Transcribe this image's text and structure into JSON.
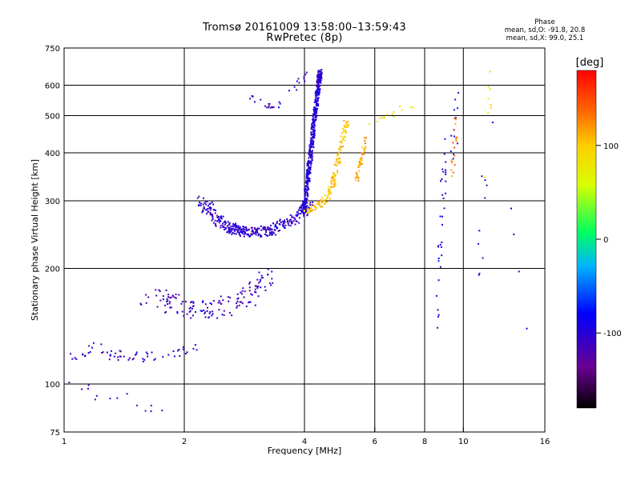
{
  "header": {
    "title_line1": "Tromsø 20161009 13:58:00–13:59:43",
    "title_line2": "RwPretec (8p)"
  },
  "phase_panel": {
    "title": "Phase",
    "o_mode": "mean, sd,O: -91.8, 20.8",
    "x_mode": "mean, sd,X:  99.0, 25.1"
  },
  "colorbar": {
    "label": "[deg]",
    "ticks": [
      {
        "value": 100,
        "label": "100"
      },
      {
        "value": 0,
        "label": "0"
      },
      {
        "value": -100,
        "label": "-100"
      }
    ],
    "range": [
      -180,
      180
    ]
  },
  "chart_data": {
    "type": "scatter",
    "xlabel": "Frequency [MHz]",
    "ylabel": "Stationary phase Virtual Height [km]",
    "xscale": "log",
    "yscale": "log",
    "xlim": [
      1,
      16
    ],
    "ylim": [
      75,
      750
    ],
    "xticks": [
      {
        "value": 1,
        "label": "1"
      },
      {
        "value": 2,
        "label": "2"
      },
      {
        "value": 4,
        "label": "4"
      },
      {
        "value": 6,
        "label": "6"
      },
      {
        "value": 8,
        "label": "8"
      },
      {
        "value": 10,
        "label": "10"
      },
      {
        "value": 16,
        "label": "16"
      }
    ],
    "yticks": [
      {
        "value": 75,
        "label": "75"
      },
      {
        "value": 100,
        "label": "100"
      },
      {
        "value": 200,
        "label": "200"
      },
      {
        "value": 300,
        "label": "300"
      },
      {
        "value": 400,
        "label": "400"
      },
      {
        "value": 500,
        "label": "500"
      },
      {
        "value": 600,
        "label": "600"
      },
      {
        "value": 750,
        "label": "750"
      }
    ],
    "grid": true,
    "point_groups": [
      {
        "mode": "O",
        "phase": -110,
        "trace": [
          [
            1.02,
            117
          ],
          [
            1.1,
            120
          ],
          [
            1.2,
            125
          ],
          [
            1.35,
            119
          ],
          [
            1.5,
            118
          ],
          [
            1.6,
            117
          ],
          [
            1.8,
            119
          ],
          [
            2.0,
            122
          ],
          [
            2.2,
            124
          ]
        ],
        "count": 60,
        "spread": [
          0.035,
          0.03
        ]
      },
      {
        "mode": "O",
        "phase": -120,
        "trace": [
          [
            1.05,
            100
          ],
          [
            1.2,
            95
          ],
          [
            1.35,
            92
          ],
          [
            1.5,
            90
          ],
          [
            1.7,
            85
          ],
          [
            1.9,
            85
          ]
        ],
        "count": 14,
        "spread": [
          0.04,
          0.04
        ]
      },
      {
        "mode": "O",
        "phase": -110,
        "trace": [
          [
            1.6,
            170
          ],
          [
            1.8,
            165
          ],
          [
            2.0,
            158
          ],
          [
            2.2,
            155
          ],
          [
            2.5,
            158
          ],
          [
            2.8,
            165
          ],
          [
            3.0,
            175
          ],
          [
            3.2,
            190
          ]
        ],
        "count": 150,
        "spread": [
          0.05,
          0.06
        ]
      },
      {
        "mode": "O",
        "phase": -105,
        "trace": [
          [
            2.2,
            300
          ],
          [
            2.4,
            270
          ],
          [
            2.6,
            255
          ],
          [
            2.8,
            250
          ],
          [
            3.0,
            248
          ],
          [
            3.3,
            252
          ],
          [
            3.6,
            262
          ],
          [
            3.9,
            278
          ],
          [
            4.1,
            292
          ]
        ],
        "count": 360,
        "spread": [
          0.035,
          0.03
        ]
      },
      {
        "mode": "O",
        "phase": -100,
        "trace": [
          [
            4.0,
            280
          ],
          [
            4.05,
            320
          ],
          [
            4.1,
            360
          ],
          [
            4.15,
            400
          ],
          [
            4.2,
            450
          ],
          [
            4.25,
            500
          ],
          [
            4.3,
            560
          ],
          [
            4.35,
            620
          ],
          [
            4.4,
            650
          ]
        ],
        "count": 480,
        "spread": [
          0.012,
          0.02
        ]
      },
      {
        "mode": "O",
        "phase": -105,
        "trace": [
          [
            2.9,
            560
          ],
          [
            3.1,
            540
          ],
          [
            3.3,
            530
          ],
          [
            3.5,
            535
          ],
          [
            3.8,
            600
          ],
          [
            4.0,
            640
          ]
        ],
        "count": 30,
        "spread": [
          0.02,
          0.02
        ]
      },
      {
        "mode": "X",
        "phase": 100,
        "trace": [
          [
            4.0,
            280
          ],
          [
            4.3,
            292
          ],
          [
            4.55,
            305
          ],
          [
            4.7,
            330
          ],
          [
            4.8,
            360
          ],
          [
            4.9,
            400
          ],
          [
            5.0,
            440
          ],
          [
            5.1,
            480
          ]
        ],
        "count": 150,
        "spread": [
          0.015,
          0.02
        ]
      },
      {
        "mode": "X",
        "phase": 115,
        "trace": [
          [
            5.4,
            340
          ],
          [
            5.5,
            370
          ],
          [
            5.6,
            400
          ],
          [
            5.7,
            430
          ]
        ],
        "count": 40,
        "spread": [
          0.01,
          0.02
        ]
      },
      {
        "mode": "X",
        "phase": 85,
        "trace": [
          [
            5.6,
            460
          ],
          [
            6.0,
            480
          ],
          [
            6.5,
            500
          ],
          [
            7.0,
            520
          ],
          [
            7.5,
            540
          ]
        ],
        "count": 14,
        "spread": [
          0.02,
          0.02
        ]
      },
      {
        "mode": "O",
        "phase": -90,
        "trace": [
          [
            8.6,
            150
          ],
          [
            8.75,
            220
          ],
          [
            8.85,
            300
          ],
          [
            8.95,
            380
          ],
          [
            9.5,
            450
          ],
          [
            9.6,
            550
          ]
        ],
        "count": 45,
        "spread": [
          0.015,
          0.12
        ]
      },
      {
        "mode": "X",
        "phase": 130,
        "trace": [
          [
            9.3,
            350
          ],
          [
            9.5,
            400
          ],
          [
            9.6,
            470
          ]
        ],
        "count": 20,
        "spread": [
          0.01,
          0.1
        ]
      },
      {
        "mode": "O",
        "phase": -100,
        "trace": [
          [
            11.0,
            200
          ],
          [
            11.3,
            350
          ],
          [
            12.0,
            500
          ],
          [
            14.5,
            125
          ]
        ],
        "count": 14,
        "spread": [
          0.02,
          0.12
        ]
      },
      {
        "mode": "X",
        "phase": 90,
        "trace": [
          [
            11.4,
            230
          ],
          [
            11.5,
            520
          ],
          [
            11.6,
            620
          ]
        ],
        "count": 8,
        "spread": [
          0.02,
          0.08
        ]
      }
    ]
  }
}
